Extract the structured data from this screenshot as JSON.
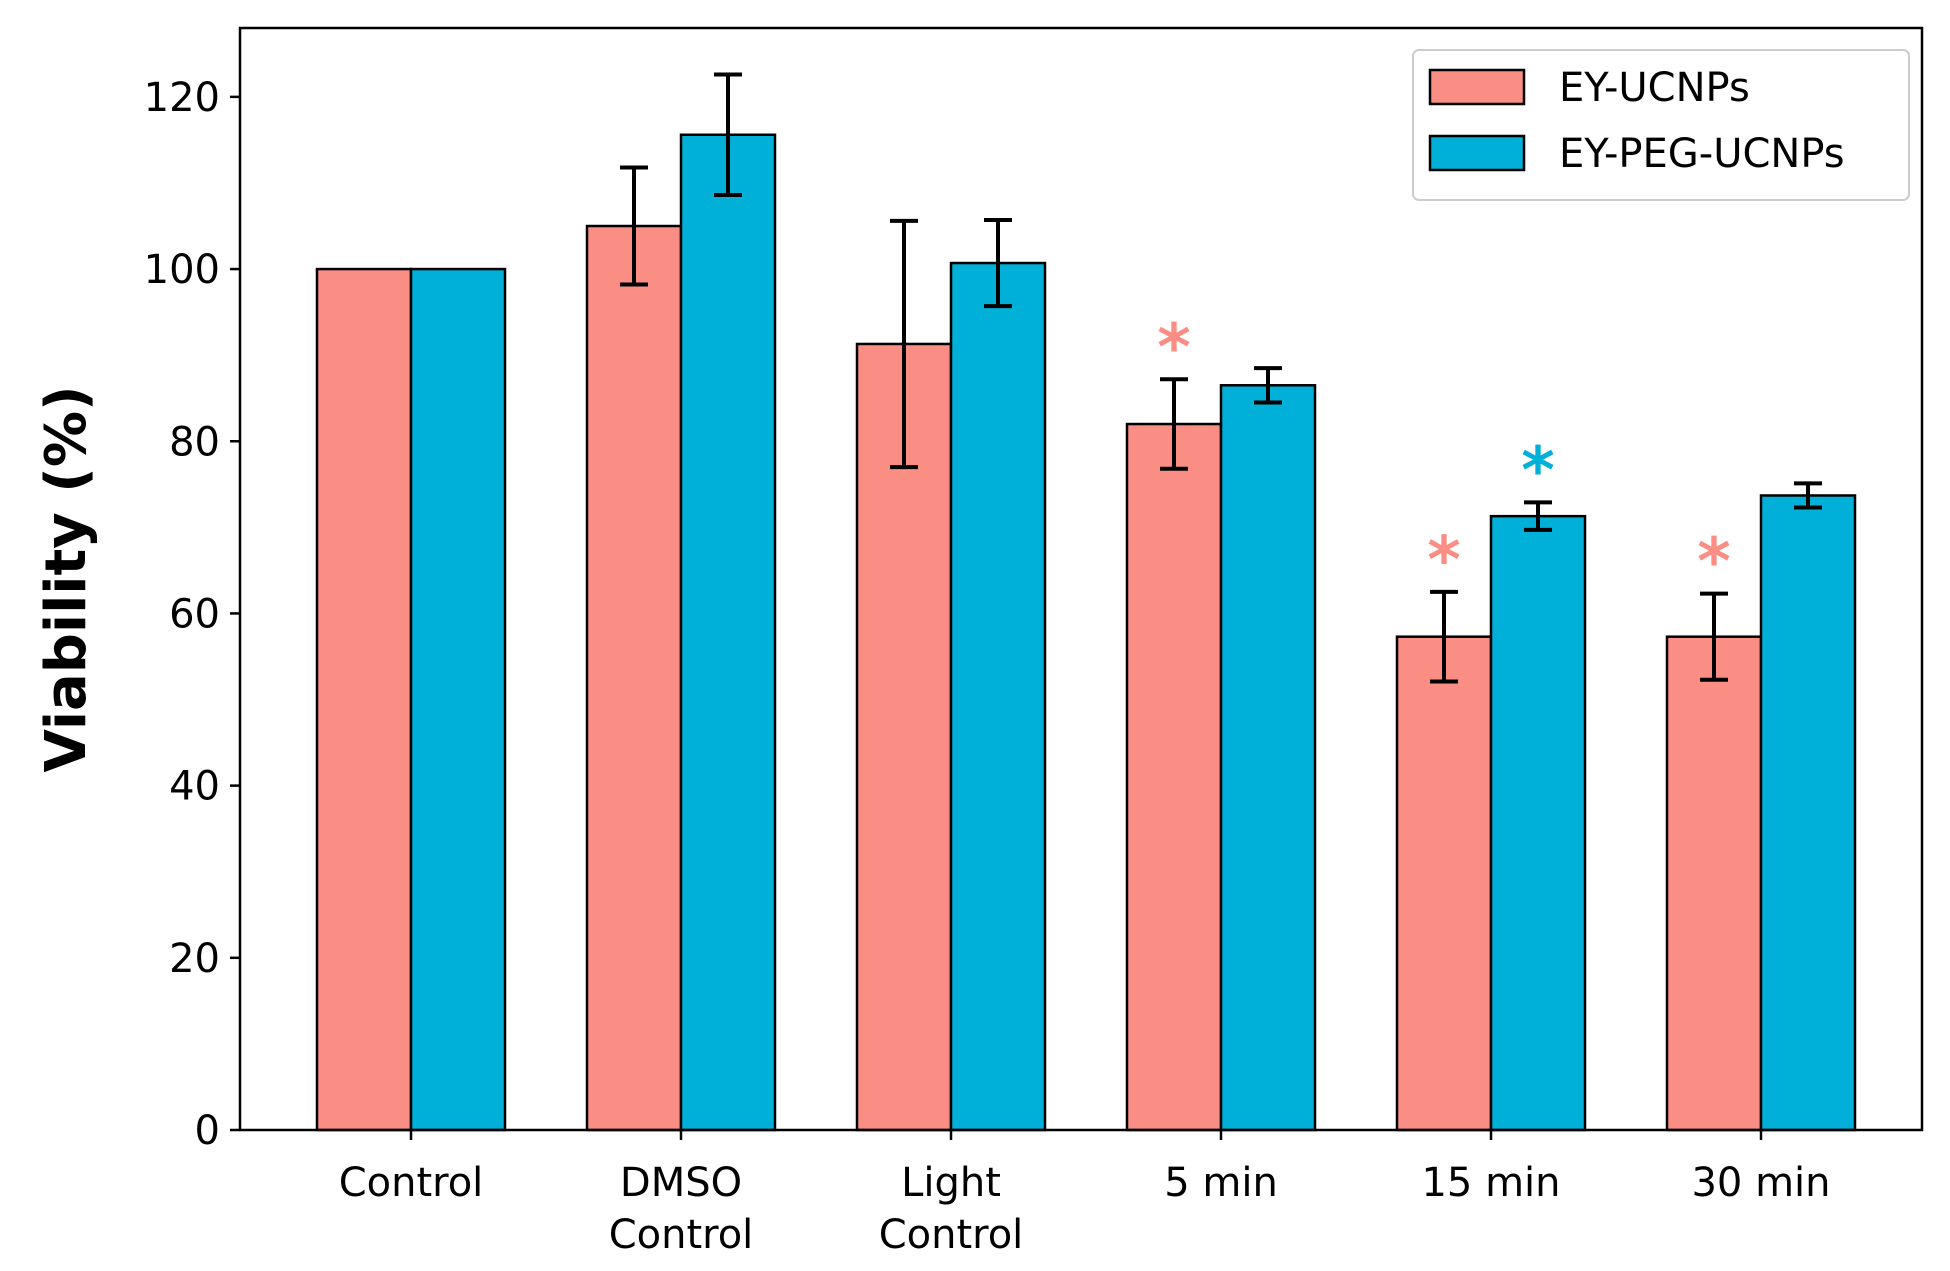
{
  "chart_data": {
    "type": "bar",
    "title": "",
    "xlabel": "",
    "ylabel": "Viability (%)",
    "ylim": [
      0,
      128
    ],
    "yticks": [
      0,
      20,
      40,
      60,
      80,
      100,
      120
    ],
    "categories": [
      [
        "Control"
      ],
      [
        "DMSO",
        "Control"
      ],
      [
        "Light",
        "Control"
      ],
      [
        "5 min"
      ],
      [
        "15 min"
      ],
      [
        "30 min"
      ]
    ],
    "series": [
      {
        "name": "EY-UCNPs",
        "color": "#FA8E84",
        "values": [
          100,
          105,
          91.3,
          82,
          57.3,
          57.3
        ],
        "errors": [
          0,
          6.8,
          14.3,
          5.2,
          5.2,
          5.0
        ],
        "significant": [
          false,
          false,
          false,
          true,
          true,
          true
        ]
      },
      {
        "name": "EY-PEG-UCNPs",
        "color": "#00B0D8",
        "values": [
          100,
          115.6,
          100.7,
          86.5,
          71.3,
          73.7
        ],
        "errors": [
          0,
          7.0,
          5.0,
          2.0,
          1.6,
          1.4
        ],
        "significant": [
          false,
          false,
          false,
          false,
          true,
          false
        ]
      }
    ],
    "significance_marker": "*",
    "legend_position": "top-right",
    "grid": false
  }
}
